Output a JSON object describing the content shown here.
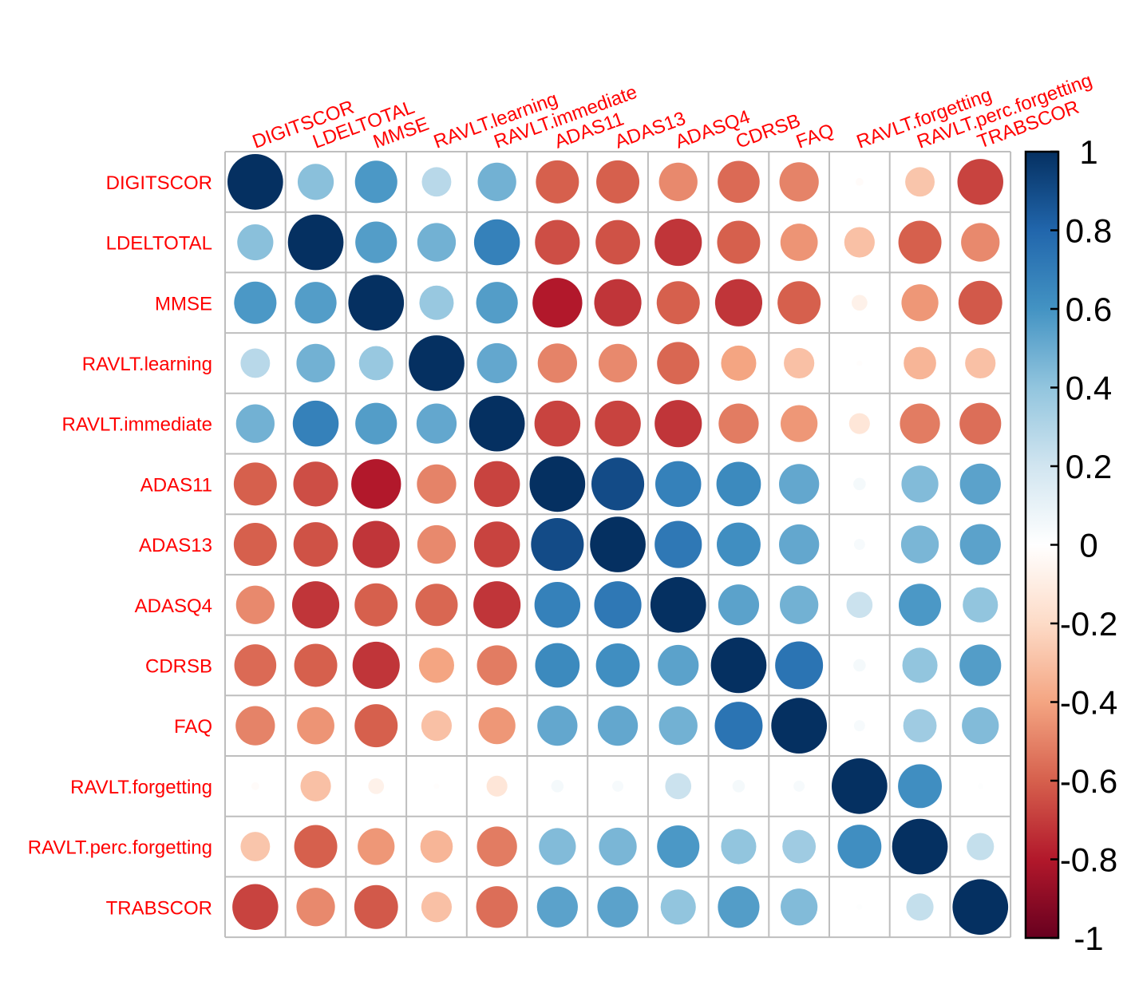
{
  "chart_data": {
    "type": "heatmap",
    "style": "circle-correlation-matrix",
    "variables": [
      "DIGITSCOR",
      "LDELTOTAL",
      "MMSE",
      "RAVLT.learning",
      "RAVLT.immediate",
      "ADAS11",
      "ADAS13",
      "ADASQ4",
      "CDRSB",
      "FAQ",
      "RAVLT.forgetting",
      "RAVLT.perc.forgetting",
      "TRABSCOR"
    ],
    "matrix": [
      [
        1.0,
        0.42,
        0.58,
        0.28,
        0.48,
        -0.6,
        -0.6,
        -0.48,
        -0.57,
        -0.5,
        -0.02,
        -0.28,
        -0.68
      ],
      [
        0.42,
        1.0,
        0.56,
        0.48,
        0.68,
        -0.65,
        -0.64,
        -0.72,
        -0.6,
        -0.45,
        -0.3,
        -0.6,
        -0.48
      ],
      [
        0.58,
        0.56,
        1.0,
        0.38,
        0.56,
        -0.8,
        -0.72,
        -0.6,
        -0.72,
        -0.6,
        -0.08,
        -0.44,
        -0.62
      ],
      [
        0.28,
        0.48,
        0.38,
        1.0,
        0.52,
        -0.5,
        -0.48,
        -0.58,
        -0.4,
        -0.3,
        -0.01,
        -0.34,
        -0.3
      ],
      [
        0.48,
        0.68,
        0.56,
        0.52,
        1.0,
        -0.68,
        -0.68,
        -0.72,
        -0.52,
        -0.44,
        -0.14,
        -0.52,
        -0.56
      ],
      [
        -0.6,
        -0.65,
        -0.8,
        -0.5,
        -0.68,
        1.0,
        0.9,
        0.68,
        0.64,
        0.52,
        0.05,
        0.44,
        0.54
      ],
      [
        -0.6,
        -0.64,
        -0.72,
        -0.48,
        -0.68,
        0.9,
        1.0,
        0.72,
        0.62,
        0.52,
        0.04,
        0.46,
        0.54
      ],
      [
        -0.48,
        -0.72,
        -0.6,
        -0.58,
        -0.72,
        0.68,
        0.72,
        1.0,
        0.54,
        0.48,
        0.22,
        0.58,
        0.4
      ],
      [
        -0.57,
        -0.6,
        -0.72,
        -0.4,
        -0.52,
        0.64,
        0.62,
        0.54,
        1.0,
        0.74,
        0.05,
        0.4,
        0.56
      ],
      [
        -0.5,
        -0.45,
        -0.6,
        -0.3,
        -0.44,
        0.52,
        0.52,
        0.48,
        0.74,
        1.0,
        0.04,
        0.36,
        0.44
      ],
      [
        -0.02,
        -0.3,
        -0.08,
        -0.01,
        -0.14,
        0.05,
        0.04,
        0.22,
        0.05,
        0.04,
        1.0,
        0.62,
        0.01
      ],
      [
        -0.28,
        -0.6,
        -0.44,
        -0.34,
        -0.52,
        0.44,
        0.46,
        0.58,
        0.4,
        0.36,
        0.62,
        1.0,
        0.24
      ],
      [
        -0.68,
        -0.48,
        -0.62,
        -0.3,
        -0.56,
        0.54,
        0.54,
        0.4,
        0.56,
        0.44,
        0.01,
        0.24,
        1.0
      ]
    ],
    "color_scale": {
      "min": -1,
      "max": 1,
      "tick_labels": [
        "1",
        "0.8",
        "0.6",
        "0.4",
        "0.2",
        "0",
        "-0.2",
        "-0.4",
        "-0.6",
        "-0.8",
        "-1"
      ],
      "palette": [
        "#67001F",
        "#B2182B",
        "#D6604D",
        "#F4A582",
        "#FDDBC7",
        "#FFFFFF",
        "#D1E5F0",
        "#92C5DE",
        "#4393C3",
        "#2166AC",
        "#053061"
      ]
    },
    "label_color": "#FF0000",
    "grid": true,
    "legend": "right"
  }
}
